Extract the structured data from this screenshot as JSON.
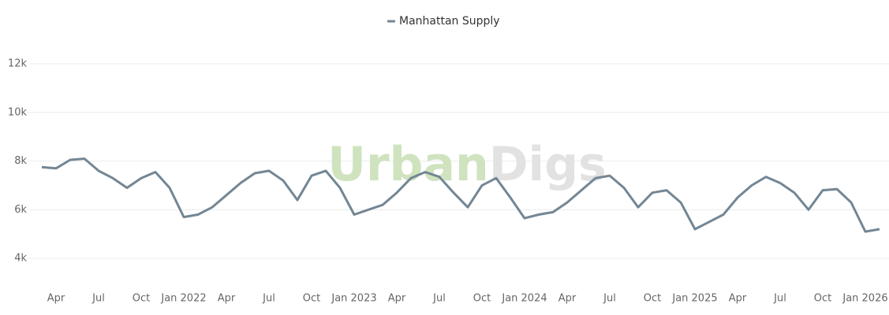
{
  "chart_data": {
    "type": "line",
    "watermark": {
      "parts": [
        {
          "text": "Urban",
          "color": "#cfe3bf"
        },
        {
          "text": "Digs",
          "color": "#e2e2e2"
        }
      ]
    },
    "x": [
      "2021-03",
      "2021-04",
      "2021-05",
      "2021-06",
      "2021-07",
      "2021-08",
      "2021-09",
      "2021-10",
      "2021-11",
      "2021-12",
      "2022-01",
      "2022-02",
      "2022-03",
      "2022-04",
      "2022-05",
      "2022-06",
      "2022-07",
      "2022-08",
      "2022-09",
      "2022-10",
      "2022-11",
      "2022-12",
      "2023-01",
      "2023-02",
      "2023-03",
      "2023-04",
      "2023-05",
      "2023-06",
      "2023-07",
      "2023-08",
      "2023-09",
      "2023-10",
      "2023-11",
      "2023-12",
      "2024-01",
      "2024-02",
      "2024-03",
      "2024-04",
      "2024-05",
      "2024-06",
      "2024-07",
      "2024-08",
      "2024-09",
      "2024-10",
      "2024-11",
      "2024-12",
      "2025-01",
      "2025-02",
      "2025-03",
      "2025-04",
      "2025-05",
      "2025-06",
      "2025-07",
      "2025-08",
      "2025-09",
      "2025-10",
      "2025-11",
      "2025-12",
      "2026-01",
      "2026-02"
    ],
    "series": [
      {
        "name": "Manhattan Supply",
        "color": "#738694",
        "values": [
          7750,
          7700,
          8050,
          8100,
          7600,
          7300,
          6900,
          7300,
          7550,
          6900,
          5700,
          5800,
          6100,
          6600,
          7100,
          7500,
          7600,
          7200,
          6400,
          7400,
          7600,
          6900,
          5800,
          6000,
          6200,
          6700,
          7300,
          7550,
          7350,
          6700,
          6100,
          7000,
          7300,
          6500,
          5650,
          5800,
          5900,
          6300,
          6800,
          7300,
          7400,
          6900,
          6100,
          6700,
          6800,
          6300,
          5200,
          5500,
          5800,
          6500,
          7000,
          7350,
          7100,
          6700,
          6000,
          6800,
          6850,
          6300,
          5100,
          5200
        ]
      }
    ],
    "xlim": [
      "2021-02",
      "2026-02"
    ],
    "xticks": [
      {
        "value": "2021-04",
        "label": "Apr"
      },
      {
        "value": "2021-07",
        "label": "Jul"
      },
      {
        "value": "2021-10",
        "label": "Oct"
      },
      {
        "value": "2022-01",
        "label": "Jan 2022"
      },
      {
        "value": "2022-04",
        "label": "Apr"
      },
      {
        "value": "2022-07",
        "label": "Jul"
      },
      {
        "value": "2022-10",
        "label": "Oct"
      },
      {
        "value": "2023-01",
        "label": "Jan 2023"
      },
      {
        "value": "2023-04",
        "label": "Apr"
      },
      {
        "value": "2023-07",
        "label": "Jul"
      },
      {
        "value": "2023-10",
        "label": "Oct"
      },
      {
        "value": "2024-01",
        "label": "Jan 2024"
      },
      {
        "value": "2024-04",
        "label": "Apr"
      },
      {
        "value": "2024-07",
        "label": "Jul"
      },
      {
        "value": "2024-10",
        "label": "Oct"
      },
      {
        "value": "2025-01",
        "label": "Jan 2025"
      },
      {
        "value": "2025-04",
        "label": "Apr"
      },
      {
        "value": "2025-07",
        "label": "Jul"
      },
      {
        "value": "2025-10",
        "label": "Oct"
      },
      {
        "value": "2026-01",
        "label": "Jan 2026"
      }
    ],
    "ylim": [
      3000,
      12000
    ],
    "yticks": [
      {
        "value": 4000,
        "label": "4k"
      },
      {
        "value": 6000,
        "label": "6k"
      },
      {
        "value": 8000,
        "label": "8k"
      },
      {
        "value": 10000,
        "label": "10k"
      },
      {
        "value": 12000,
        "label": "12k"
      }
    ],
    "grid": true,
    "legend": "top"
  }
}
